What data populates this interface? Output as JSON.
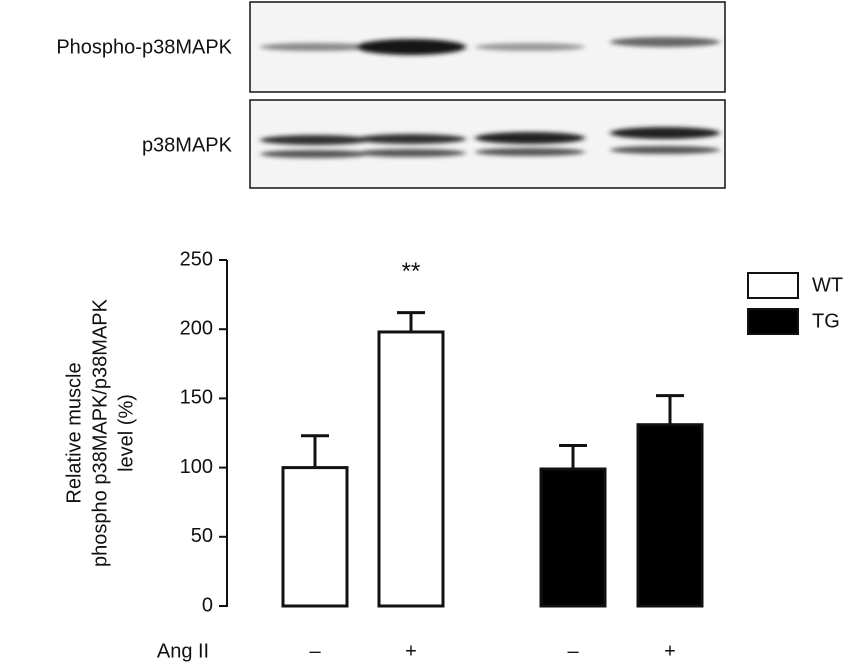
{
  "blot": {
    "labels": [
      "Phospho-p38MAPK",
      "p38MAPK"
    ]
  },
  "chart_data": {
    "type": "bar",
    "ylabel": [
      "Relative muscle",
      "phospho p38MAPK/p38MAPK",
      "level (%)"
    ],
    "xlabel": "Ang II",
    "categories": [
      "–",
      "+",
      "–",
      "+"
    ],
    "series": [
      {
        "name": "WT",
        "color": "#ffffff",
        "values": [
          100,
          198,
          null,
          null
        ],
        "errors": [
          23,
          14,
          null,
          null
        ],
        "significance": [
          null,
          "**",
          null,
          null
        ]
      },
      {
        "name": "TG",
        "color": "#000000",
        "values": [
          null,
          null,
          99,
          131
        ],
        "errors": [
          null,
          null,
          17,
          21
        ],
        "significance": [
          null,
          null,
          null,
          null
        ]
      }
    ],
    "ylim": [
      0,
      250
    ],
    "yticks": [
      0,
      50,
      100,
      150,
      200,
      250
    ]
  }
}
